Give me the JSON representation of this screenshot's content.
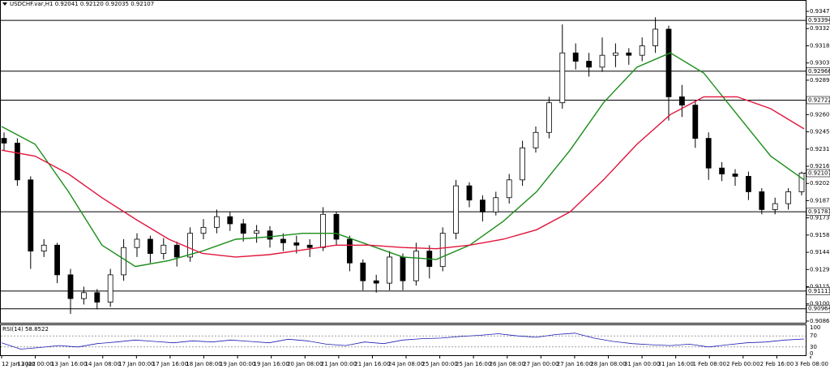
{
  "chart_data": {
    "type": "candlestick",
    "header": "USDCHF.var,H1  0.92041 0.92120 0.92035 0.92107",
    "ylim": [
      0.90846,
      0.93559
    ],
    "yticks": [
      {
        "value": 0.9347,
        "label": "0.93470"
      },
      {
        "value": 0.93325,
        "label": "0.93325"
      },
      {
        "value": 0.9318,
        "label": "0.93180"
      },
      {
        "value": 0.93035,
        "label": "0.93035"
      },
      {
        "value": 0.9289,
        "label": "0.92890"
      },
      {
        "value": 0.926,
        "label": "0.92600"
      },
      {
        "value": 0.92455,
        "label": "0.92455"
      },
      {
        "value": 0.9231,
        "label": "0.92310"
      },
      {
        "value": 0.92165,
        "label": "0.92165"
      },
      {
        "value": 0.9202,
        "label": "0.92020"
      },
      {
        "value": 0.91875,
        "label": "0.91875"
      },
      {
        "value": 0.9173,
        "label": "0.91730"
      },
      {
        "value": 0.91585,
        "label": "0.91585"
      },
      {
        "value": 0.9144,
        "label": "0.91440"
      },
      {
        "value": 0.91295,
        "label": "0.91295"
      },
      {
        "value": 0.9115,
        "label": "0.91150"
      },
      {
        "value": 0.91005,
        "label": "0.91005"
      },
      {
        "value": 0.9086,
        "label": "0.90860"
      }
    ],
    "levels": [
      {
        "value": 0.93394,
        "label": "0.93394"
      },
      {
        "value": 0.92966,
        "label": "0.92966"
      },
      {
        "value": 0.92722,
        "label": "0.92722"
      },
      {
        "value": 0.91781,
        "label": "0.91781"
      },
      {
        "value": 0.91113,
        "label": "0.91113"
      },
      {
        "value": 0.90964,
        "label": "0.90964"
      }
    ],
    "current": {
      "value": 0.92107,
      "label": "0.92107"
    },
    "x_labels": [
      "12 Jan 2022",
      "13 Jan 00:00",
      "13 Jan 16:00",
      "14 Jan 08:00",
      "17 Jan 00:00",
      "17 Jan 16:00",
      "18 Jan 08:00",
      "19 Jan 00:00",
      "19 Jan 16:00",
      "20 Jan 08:00",
      "21 Jan 00:00",
      "21 Jan 16:00",
      "24 Jan 08:00",
      "25 Jan 00:00",
      "25 Jan 16:00",
      "26 Jan 08:00",
      "27 Jan 00:00",
      "27 Jan 16:00",
      "28 Jan 08:00",
      "31 Jan 00:00",
      "31 Jan 16:00",
      "1 Feb 08:00",
      "2 Feb 00:00",
      "2 Feb 16:00",
      "3 Feb 08:00"
    ],
    "candles": [
      [
        0.924,
        0.9245,
        0.923,
        0.9236
      ],
      [
        0.9236,
        0.924,
        0.92,
        0.9205
      ],
      [
        0.9205,
        0.9208,
        0.913,
        0.9145
      ],
      [
        0.9145,
        0.9155,
        0.914,
        0.915
      ],
      [
        0.915,
        0.9152,
        0.9118,
        0.9125
      ],
      [
        0.9125,
        0.913,
        0.9092,
        0.9105
      ],
      [
        0.9105,
        0.9115,
        0.91,
        0.911
      ],
      [
        0.911,
        0.9113,
        0.9096,
        0.9102
      ],
      [
        0.9102,
        0.913,
        0.9098,
        0.9125
      ],
      [
        0.9125,
        0.9155,
        0.912,
        0.9148
      ],
      [
        0.9148,
        0.916,
        0.914,
        0.9155
      ],
      [
        0.9155,
        0.9158,
        0.9135,
        0.9143
      ],
      [
        0.9143,
        0.9156,
        0.9138,
        0.915
      ],
      [
        0.915,
        0.9153,
        0.9132,
        0.914
      ],
      [
        0.914,
        0.9165,
        0.9136,
        0.916
      ],
      [
        0.916,
        0.9172,
        0.9155,
        0.9165
      ],
      [
        0.9165,
        0.918,
        0.916,
        0.9174
      ],
      [
        0.9174,
        0.9178,
        0.9162,
        0.9168
      ],
      [
        0.9168,
        0.9172,
        0.9153,
        0.916
      ],
      [
        0.916,
        0.9167,
        0.9152,
        0.9162
      ],
      [
        0.9162,
        0.9166,
        0.9148,
        0.9155
      ],
      [
        0.9155,
        0.916,
        0.9145,
        0.9152
      ],
      [
        0.9152,
        0.9158,
        0.9143,
        0.915
      ],
      [
        0.915,
        0.9155,
        0.914,
        0.9148
      ],
      [
        0.9148,
        0.9182,
        0.9145,
        0.9176
      ],
      [
        0.9176,
        0.9178,
        0.915,
        0.9155
      ],
      [
        0.9155,
        0.9158,
        0.9128,
        0.9135
      ],
      [
        0.9135,
        0.9138,
        0.9112,
        0.912
      ],
      [
        0.912,
        0.9125,
        0.911,
        0.9118
      ],
      [
        0.9118,
        0.9145,
        0.9112,
        0.914
      ],
      [
        0.914,
        0.9143,
        0.9112,
        0.912
      ],
      [
        0.912,
        0.9152,
        0.9116,
        0.9145
      ],
      [
        0.9145,
        0.915,
        0.9122,
        0.9132
      ],
      [
        0.9132,
        0.9165,
        0.9128,
        0.916
      ],
      [
        0.916,
        0.9205,
        0.9155,
        0.92
      ],
      [
        0.92,
        0.9203,
        0.9182,
        0.9188
      ],
      [
        0.9188,
        0.9192,
        0.917,
        0.9178
      ],
      [
        0.9178,
        0.9195,
        0.9175,
        0.919
      ],
      [
        0.919,
        0.921,
        0.9185,
        0.9205
      ],
      [
        0.9205,
        0.9238,
        0.92,
        0.9232
      ],
      [
        0.9232,
        0.925,
        0.9228,
        0.9245
      ],
      [
        0.9245,
        0.9275,
        0.924,
        0.927
      ],
      [
        0.927,
        0.9336,
        0.9265,
        0.9312
      ],
      [
        0.9312,
        0.932,
        0.9298,
        0.9305
      ],
      [
        0.9305,
        0.9312,
        0.9292,
        0.93
      ],
      [
        0.93,
        0.9325,
        0.9296,
        0.931
      ],
      [
        0.931,
        0.932,
        0.93,
        0.9312
      ],
      [
        0.9312,
        0.9316,
        0.9302,
        0.931
      ],
      [
        0.931,
        0.9325,
        0.9305,
        0.9318
      ],
      [
        0.9318,
        0.9342,
        0.9312,
        0.9332
      ],
      [
        0.9332,
        0.9335,
        0.9255,
        0.9275
      ],
      [
        0.9275,
        0.9285,
        0.9258,
        0.9268
      ],
      [
        0.9268,
        0.9272,
        0.9232,
        0.924
      ],
      [
        0.924,
        0.9245,
        0.9205,
        0.9215
      ],
      [
        0.9215,
        0.922,
        0.9204,
        0.921
      ],
      [
        0.921,
        0.9214,
        0.92,
        0.9208
      ],
      [
        0.9208,
        0.9212,
        0.9188,
        0.9195
      ],
      [
        0.9195,
        0.9198,
        0.9176,
        0.918
      ],
      [
        0.918,
        0.919,
        0.9176,
        0.9185
      ],
      [
        0.9185,
        0.9198,
        0.918,
        0.9195
      ],
      [
        0.9195,
        0.9212,
        0.9192,
        0.92107
      ]
    ],
    "series": [
      {
        "color": "#1a8c1a",
        "values": [
          0.925,
          0.9235,
          0.9195,
          0.915,
          0.9132,
          0.9137,
          0.9145,
          0.9155,
          0.9157,
          0.916,
          0.916,
          0.915,
          0.914,
          0.9138,
          0.915,
          0.917,
          0.9195,
          0.923,
          0.927,
          0.93,
          0.9312,
          0.9295,
          0.926,
          0.9225,
          0.9205
        ]
      },
      {
        "color": "#e0163c",
        "values": [
          0.923,
          0.9225,
          0.921,
          0.919,
          0.9172,
          0.9155,
          0.9143,
          0.914,
          0.9142,
          0.9146,
          0.915,
          0.915,
          0.9148,
          0.9147,
          0.915,
          0.9155,
          0.9163,
          0.9178,
          0.9205,
          0.9235,
          0.926,
          0.9275,
          0.9275,
          0.9265,
          0.9248
        ]
      }
    ],
    "rsi": {
      "label": "RSI(14) 58.8522",
      "color": "#1c1cb4",
      "ylim": [
        0,
        100
      ],
      "yticks": [
        100,
        70,
        30,
        0
      ],
      "levels": [
        70,
        30
      ],
      "values": [
        45,
        22,
        28,
        35,
        30,
        42,
        48,
        55,
        50,
        45,
        52,
        48,
        55,
        50,
        45,
        58,
        52,
        40,
        35,
        48,
        42,
        55,
        60,
        62,
        68,
        72,
        78,
        70,
        65,
        75,
        80,
        62,
        50,
        42,
        38,
        35,
        40,
        30,
        38,
        45,
        48,
        55,
        58.8522
      ]
    }
  }
}
